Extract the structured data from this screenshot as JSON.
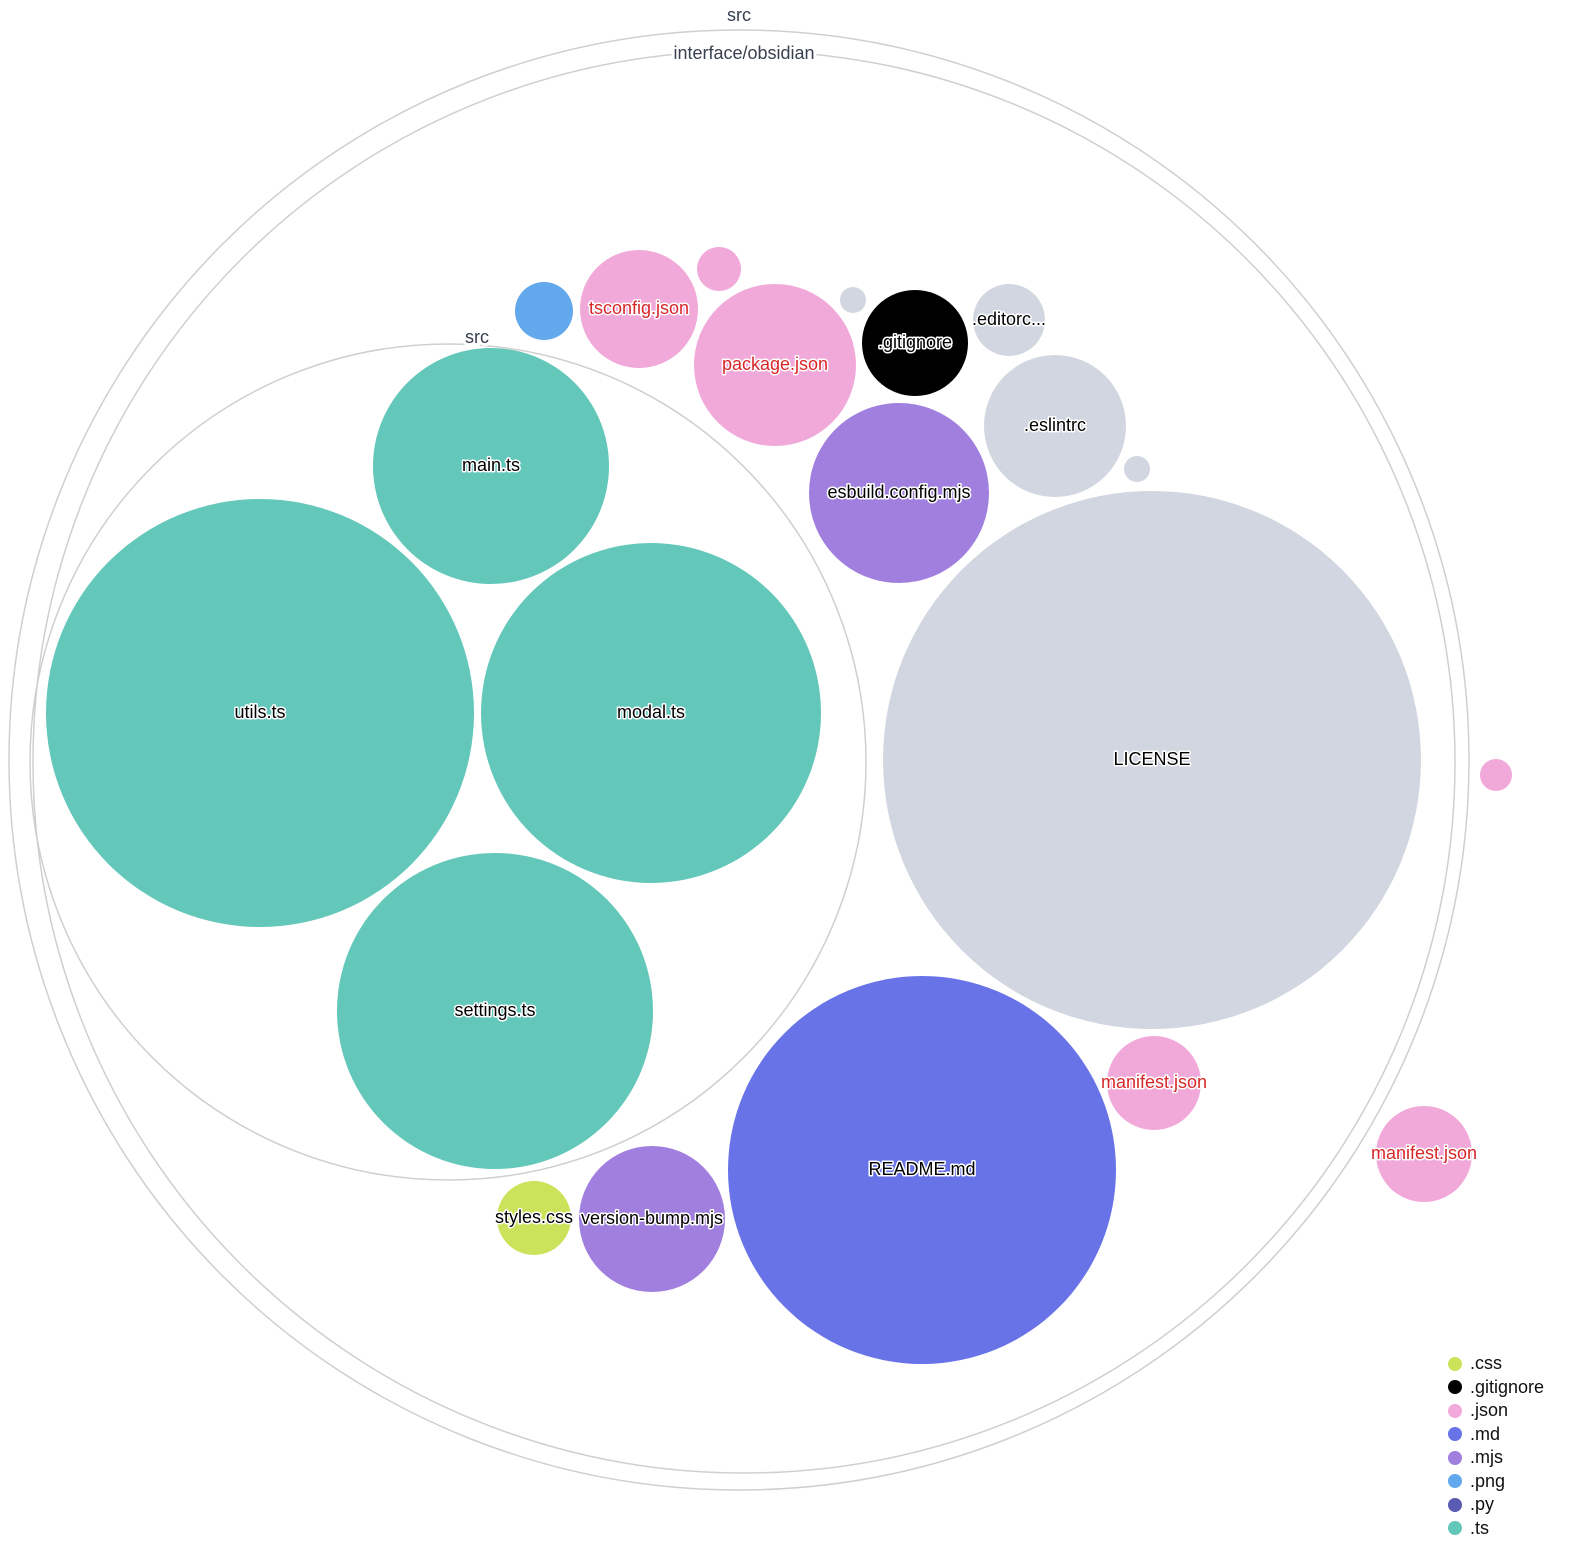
{
  "colors": {
    ".css": "#cbe35a",
    ".gitignore": "#000000",
    ".json": "#f1a9da",
    ".md": "#6873e8",
    ".mjs": "#a07fdf",
    ".png": "#61a8ec",
    ".py": "#5a5bb3",
    ".ts": "#63c7b9",
    "other": "#d1d6e0",
    "changed_label": "#d62728"
  },
  "folders": [
    {
      "label": "src"
    },
    {
      "label": "interface/obsidian"
    },
    {
      "label": "src"
    }
  ],
  "files": [
    {
      "label": "main.ts",
      "ext": ".ts"
    },
    {
      "label": "utils.ts",
      "ext": ".ts"
    },
    {
      "label": "modal.ts",
      "ext": ".ts"
    },
    {
      "label": "settings.ts",
      "ext": ".ts"
    },
    {
      "label": "LICENSE",
      "ext": "other"
    },
    {
      "label": "README.md",
      "ext": ".md"
    },
    {
      "label": "esbuild.config.mjs",
      "ext": ".mjs"
    },
    {
      "label": ".eslintrc",
      "ext": "other"
    },
    {
      "label": "package.json",
      "ext": ".json",
      "changed": true
    },
    {
      "label": ".gitignore",
      "ext": ".gitignore"
    },
    {
      "label": ".editorc...",
      "ext": "other"
    },
    {
      "label": "tsconfig.json",
      "ext": ".json",
      "changed": true
    },
    {
      "label": "",
      "ext": ".png"
    },
    {
      "label": "",
      "ext": ".json"
    },
    {
      "label": "",
      "ext": "other"
    },
    {
      "label": "",
      "ext": "other"
    },
    {
      "label": "manifest.json",
      "ext": ".json",
      "changed": true
    },
    {
      "label": "manifest.json",
      "ext": ".json",
      "changed": true
    },
    {
      "label": "",
      "ext": ".json"
    },
    {
      "label": "styles.css",
      "ext": ".css"
    },
    {
      "label": "version-bump.mjs",
      "ext": ".mjs"
    }
  ],
  "legend": [
    ".css",
    ".gitignore",
    ".json",
    ".md",
    ".mjs",
    ".png",
    ".py",
    ".ts"
  ]
}
